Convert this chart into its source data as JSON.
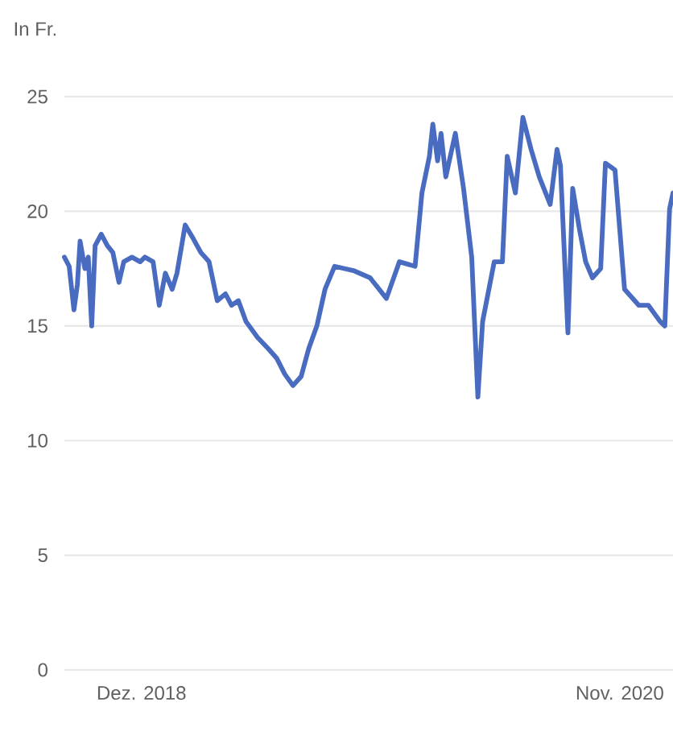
{
  "chart_data": {
    "type": "line",
    "ylabel": "In Fr.",
    "x": [
      "2018-08-10",
      "2018-08-17",
      "2018-08-24",
      "2018-08-29",
      "2018-09-02",
      "2018-09-09",
      "2018-09-14",
      "2018-09-19",
      "2018-09-24",
      "2018-10-03",
      "2018-10-12",
      "2018-10-20",
      "2018-10-29",
      "2018-11-05",
      "2018-11-17",
      "2018-11-29",
      "2018-12-06",
      "2018-12-18",
      "2018-12-27",
      "2019-01-05",
      "2019-01-15",
      "2019-01-22",
      "2019-02-03",
      "2019-02-15",
      "2019-02-26",
      "2019-03-10",
      "2019-03-22",
      "2019-04-03",
      "2019-04-12",
      "2019-04-22",
      "2019-05-03",
      "2019-05-20",
      "2019-06-05",
      "2019-06-17",
      "2019-06-29",
      "2019-07-11",
      "2019-07-23",
      "2019-08-03",
      "2019-08-15",
      "2019-08-27",
      "2019-09-10",
      "2019-10-09",
      "2019-11-01",
      "2019-11-25",
      "2019-12-14",
      "2020-01-06",
      "2020-01-16",
      "2020-01-27",
      "2020-02-01",
      "2020-02-08",
      "2020-02-13",
      "2020-02-20",
      "2020-03-05",
      "2020-03-17",
      "2020-03-29",
      "2020-04-07",
      "2020-04-14",
      "2020-05-01",
      "2020-05-13",
      "2020-05-20",
      "2020-06-01",
      "2020-06-12",
      "2020-06-24",
      "2020-07-06",
      "2020-07-22",
      "2020-08-01",
      "2020-08-06",
      "2020-08-17",
      "2020-08-24",
      "2020-09-03",
      "2020-09-12",
      "2020-09-22",
      "2020-10-04",
      "2020-10-11",
      "2020-10-25",
      "2020-11-01",
      "2020-11-08",
      "2020-11-29",
      "2020-12-13",
      "2020-12-30",
      "2021-01-06",
      "2021-01-13",
      "2021-01-18"
    ],
    "series": [
      {
        "color": "#4a6cc0",
        "values": [
          18.0,
          17.6,
          15.7,
          16.8,
          18.7,
          17.5,
          18.0,
          15.0,
          18.5,
          19.0,
          18.5,
          18.2,
          16.9,
          17.8,
          18.0,
          17.8,
          18.0,
          17.8,
          15.9,
          17.3,
          16.6,
          17.3,
          19.4,
          18.8,
          18.2,
          17.8,
          16.1,
          16.4,
          15.9,
          16.1,
          15.2,
          14.5,
          14.0,
          13.6,
          12.9,
          12.4,
          12.8,
          14.0,
          15.0,
          16.6,
          17.6,
          17.4,
          17.1,
          16.2,
          17.8,
          17.6,
          20.8,
          22.4,
          23.8,
          22.2,
          23.4,
          21.5,
          23.4,
          21.0,
          18.0,
          11.9,
          15.2,
          17.8,
          17.8,
          22.4,
          20.8,
          24.1,
          22.7,
          21.5,
          20.3,
          22.7,
          22.0,
          14.7,
          21.0,
          19.2,
          17.8,
          17.1,
          17.5,
          22.1,
          21.8,
          19.2,
          16.6,
          15.9,
          15.9,
          15.2,
          15.0,
          20.1,
          20.8
        ]
      }
    ],
    "xlim": [
      "2018-08-10",
      "2021-01-18"
    ],
    "xticks": [
      {
        "value": "2018-12-01",
        "label": "Dez. 2018"
      },
      {
        "value": "2020-11-01",
        "label": "Nov. 2020"
      }
    ],
    "ylim": [
      0,
      25
    ],
    "yticks": [
      0,
      5,
      10,
      15,
      20,
      25
    ],
    "grid": "y",
    "marker": "none",
    "line_style": "solid"
  }
}
